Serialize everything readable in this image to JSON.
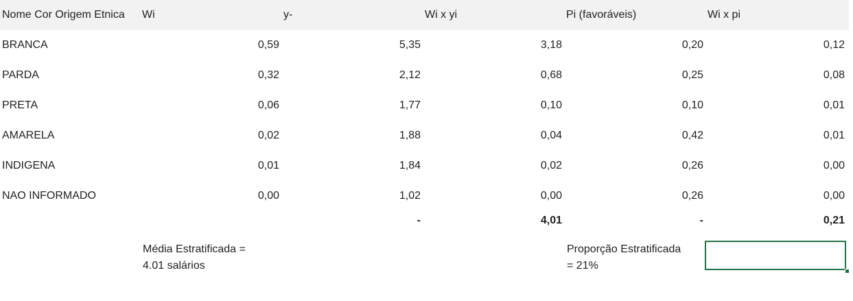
{
  "headers": {
    "name": "Nome Cor Origem Etnica",
    "wi": "Wi",
    "y": "y-",
    "wixyi": "Wi x yi",
    "pi": "Pi (favoráveis)",
    "wixpi": "Wi x pi"
  },
  "rows": [
    {
      "name": "BRANCA",
      "c1": "0,59",
      "c2": "5,35",
      "c3": "3,18",
      "c4": "0,20",
      "c5": "0,12"
    },
    {
      "name": "PARDA",
      "c1": "0,32",
      "c2": "2,12",
      "c3": "0,68",
      "c4": "0,25",
      "c5": "0,08"
    },
    {
      "name": "PRETA",
      "c1": "0,06",
      "c2": "1,77",
      "c3": "0,10",
      "c4": "0,10",
      "c5": "0,01"
    },
    {
      "name": "AMARELA",
      "c1": "0,02",
      "c2": "1,88",
      "c3": "0,04",
      "c4": "0,42",
      "c5": "0,01"
    },
    {
      "name": "INDIGENA",
      "c1": "0,01",
      "c2": "1,84",
      "c3": "0,02",
      "c4": "0,26",
      "c5": "0,00"
    },
    {
      "name": "NAO INFORMADO",
      "c1": "0,00",
      "c2": "1,02",
      "c3": "0,00",
      "c4": "0,26",
      "c5": "0,00"
    }
  ],
  "totals": {
    "c2": "-",
    "c3": "4,01",
    "c4": "-",
    "c5": "0,21"
  },
  "notes": {
    "media": "Média Estratificada =\n4.01 salários",
    "proporcao": "Proporção Estratificada\n= 21%"
  },
  "colors": {
    "header_bg": "#f2f2f2",
    "selection": "#217346"
  }
}
